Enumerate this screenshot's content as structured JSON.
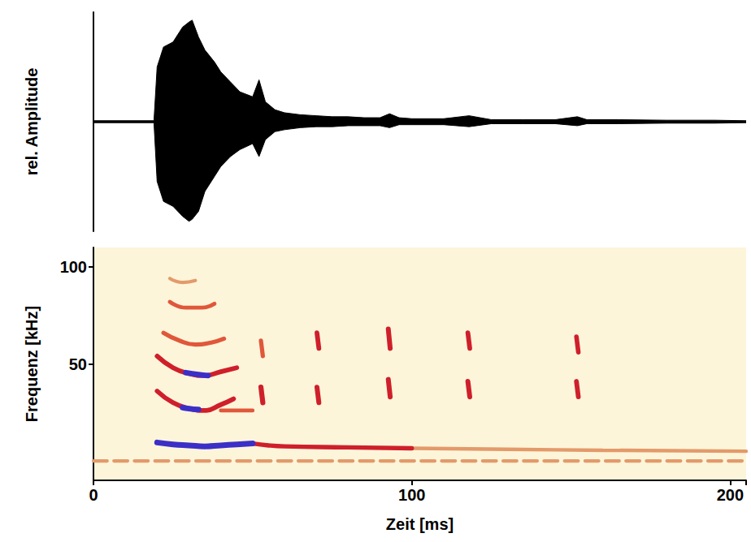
{
  "chart_data": [
    {
      "type": "area",
      "ylabel": "rel. Amplitude",
      "xlim": [
        0,
        205
      ],
      "ylim": [
        -1.1,
        1.1
      ],
      "tick_labels": false,
      "x": [
        0,
        19,
        20,
        22,
        25,
        28,
        30,
        31,
        33,
        35,
        38,
        40,
        43,
        46,
        50,
        52,
        54,
        57,
        60,
        65,
        70,
        75,
        80,
        85,
        90,
        93,
        96,
        100,
        110,
        118,
        125,
        135,
        145,
        152,
        155,
        165,
        180,
        195,
        205
      ],
      "series": [
        {
          "color": "#000000",
          "values": [
            0.01,
            0.01,
            0.55,
            0.75,
            0.8,
            0.95,
            1.0,
            1.02,
            0.85,
            0.72,
            0.6,
            0.5,
            0.4,
            0.3,
            0.25,
            0.42,
            0.2,
            0.12,
            0.09,
            0.07,
            0.06,
            0.05,
            0.05,
            0.04,
            0.04,
            0.08,
            0.04,
            0.03,
            0.03,
            0.06,
            0.02,
            0.02,
            0.02,
            0.05,
            0.02,
            0.02,
            0.015,
            0.015,
            0.01
          ]
        },
        {
          "color": "#000000",
          "values": [
            -0.01,
            -0.01,
            -0.6,
            -0.8,
            -0.85,
            -0.95,
            -1.0,
            -0.98,
            -0.9,
            -0.7,
            -0.55,
            -0.45,
            -0.35,
            -0.28,
            -0.22,
            -0.35,
            -0.18,
            -0.1,
            -0.08,
            -0.06,
            -0.05,
            -0.05,
            -0.04,
            -0.04,
            -0.04,
            -0.06,
            -0.03,
            -0.03,
            -0.03,
            -0.05,
            -0.02,
            -0.02,
            -0.02,
            -0.04,
            -0.02,
            -0.02,
            -0.015,
            -0.015,
            -0.01
          ]
        }
      ]
    },
    {
      "type": "spectrogram",
      "xlabel": "Zeit [ms]",
      "ylabel": "Frequenz [kHz]",
      "xlim": [
        0,
        205
      ],
      "ylim": [
        -10,
        110
      ],
      "xticks": [
        0,
        100,
        200
      ],
      "yticks": [
        50,
        100
      ],
      "traces": [
        {
          "x": [
            0,
            205
          ],
          "y": [
            0,
            0
          ],
          "intensity": 0.3,
          "line_style": "dashed"
        },
        {
          "x": [
            50,
            55,
            60,
            80,
            100
          ],
          "y": [
            9,
            8,
            7.5,
            7,
            6.5
          ],
          "intensity": 0.6
        },
        {
          "x": [
            100,
            130,
            160,
            205
          ],
          "y": [
            6.5,
            6,
            5.5,
            5
          ],
          "intensity": 0.35
        },
        {
          "x": [
            20,
            25,
            30,
            35,
            40,
            45,
            50
          ],
          "y": [
            9.5,
            8.5,
            8,
            7.5,
            8,
            8.5,
            9
          ],
          "intensity": 1.0
        },
        {
          "x": [
            20,
            25,
            30,
            35,
            40,
            44
          ],
          "y": [
            36,
            30,
            27,
            26,
            29,
            32
          ],
          "intensity": 0.7
        },
        {
          "x": [
            28,
            30,
            33
          ],
          "y": [
            27.5,
            27,
            26.5
          ],
          "intensity": 0.95
        },
        {
          "x": [
            40,
            50
          ],
          "y": [
            26,
            26
          ],
          "intensity": 0.4
        },
        {
          "x": [
            20,
            25,
            30,
            35,
            40,
            45
          ],
          "y": [
            54,
            48,
            45,
            44,
            46,
            48
          ],
          "intensity": 0.7
        },
        {
          "x": [
            29,
            33,
            36
          ],
          "y": [
            45.5,
            44.5,
            44
          ],
          "intensity": 0.95
        },
        {
          "x": [
            22,
            27,
            32,
            37,
            41
          ],
          "y": [
            66,
            62,
            60,
            61,
            63
          ],
          "intensity": 0.55
        },
        {
          "x": [
            24,
            29,
            34,
            38
          ],
          "y": [
            82,
            79,
            79,
            81
          ],
          "intensity": 0.45
        },
        {
          "x": [
            24,
            28,
            32
          ],
          "y": [
            94,
            92,
            93
          ],
          "intensity": 0.3
        },
        {
          "x": [
            52.6,
            53.2
          ],
          "y": [
            62,
            54
          ],
          "intensity": 0.55
        },
        {
          "x": [
            52.6,
            53.2
          ],
          "y": [
            38,
            30
          ],
          "intensity": 0.8
        },
        {
          "x": [
            70.2,
            70.8
          ],
          "y": [
            66,
            58
          ],
          "intensity": 0.7
        },
        {
          "x": [
            70.2,
            70.8
          ],
          "y": [
            38,
            30
          ],
          "intensity": 0.75
        },
        {
          "x": [
            92.6,
            93.2
          ],
          "y": [
            68,
            58
          ],
          "intensity": 0.75
        },
        {
          "x": [
            92.6,
            93.2
          ],
          "y": [
            42,
            33
          ],
          "intensity": 0.75
        },
        {
          "x": [
            117.6,
            118.2
          ],
          "y": [
            66,
            58
          ],
          "intensity": 0.7
        },
        {
          "x": [
            117.6,
            118.2
          ],
          "y": [
            41,
            33
          ],
          "intensity": 0.75
        },
        {
          "x": [
            151.7,
            152.3
          ],
          "y": [
            64,
            56
          ],
          "intensity": 0.65
        },
        {
          "x": [
            151.7,
            152.3
          ],
          "y": [
            41,
            33
          ],
          "intensity": 0.7
        }
      ]
    }
  ]
}
